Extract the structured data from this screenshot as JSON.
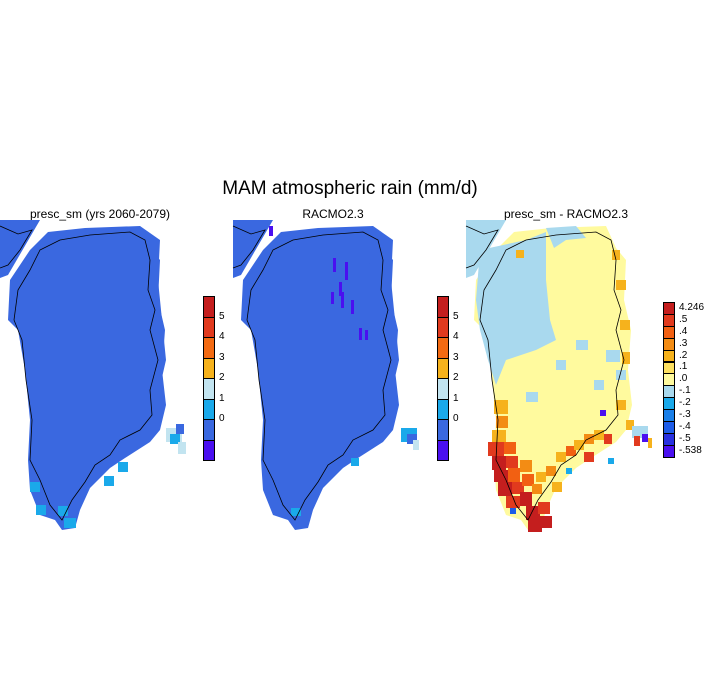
{
  "title": "MAM atmospheric rain (mm/d)",
  "panels": [
    {
      "title": "presc_sm (yrs 2060-2079)"
    },
    {
      "title": "RACMO2.3"
    },
    {
      "title": "presc_sm - RACMO2.3"
    }
  ],
  "colors": {
    "bar1": [
      "#4a0ff0",
      "#3a68e0",
      "#1aa9ea",
      "#c2e4f0",
      "#f6b21c",
      "#f36a12",
      "#e13a1e",
      "#c41e1e"
    ],
    "bar2": [
      "#4a0ff0",
      "#2830e0",
      "#1d5ce8",
      "#1a7fe8",
      "#1aa9ea",
      "#a9d9ee",
      "#fffa9e",
      "#fde060",
      "#f6b21c",
      "#f38c14",
      "#f26012",
      "#e13a1e",
      "#c41e1e"
    ]
  },
  "colorbars": {
    "abs": {
      "labels": [
        "5",
        "4",
        "3",
        "2",
        "1",
        "0"
      ]
    },
    "diff": {
      "labels": [
        "4.246",
        ".5",
        ".4",
        ".3",
        ".2",
        ".1",
        ".0",
        "-.1",
        "-.2",
        "-.3",
        "-.4",
        "-.5",
        "-.538"
      ]
    }
  }
}
